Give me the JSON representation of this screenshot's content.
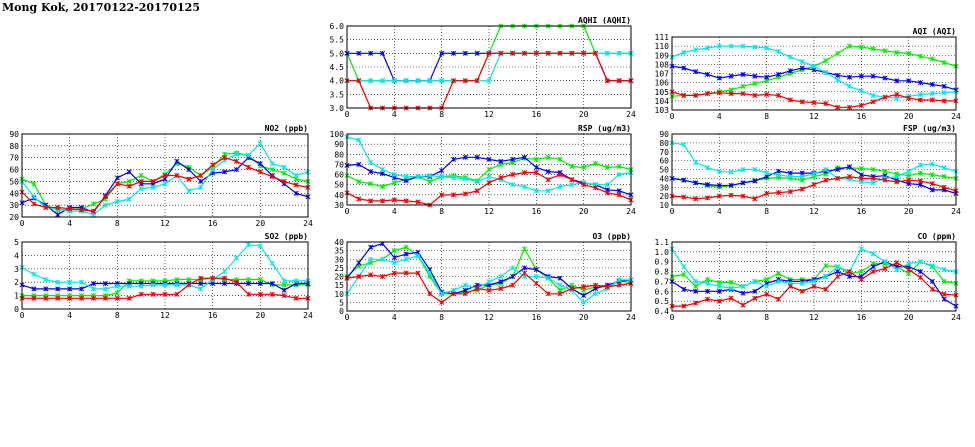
{
  "page": {
    "title": "Mong Kok, 20170122-20170125"
  },
  "colors": {
    "series_a": "#00ee00",
    "series_b": "#0000ee",
    "series_c": "#00e8e8",
    "series_d": "#ee0000"
  },
  "chart_data": [
    {
      "type": "line",
      "title": "AQHI (AQHI)",
      "xlim": [
        0,
        24
      ],
      "ylim": [
        3.0,
        6.0
      ],
      "xticks": [
        0,
        4,
        8,
        12,
        16,
        20,
        24
      ],
      "yticks": [
        3.0,
        3.5,
        4.0,
        4.5,
        5.0,
        5.5,
        6.0
      ],
      "grid": true,
      "series": [
        {
          "color": "#00ee00",
          "values": [
            5,
            4,
            4,
            4,
            4,
            4,
            4,
            4,
            4,
            4,
            4,
            4,
            5,
            6,
            6,
            6,
            6,
            6,
            6,
            6,
            6,
            5,
            5,
            5,
            5
          ]
        },
        {
          "color": "#0000ee",
          "values": [
            5,
            5,
            5,
            5,
            4,
            4,
            4,
            4,
            5,
            5,
            5,
            5,
            5,
            5,
            5,
            5,
            5,
            5,
            5,
            5,
            5,
            5,
            4,
            4,
            4
          ]
        },
        {
          "color": "#00e8e8",
          "values": [
            4,
            4,
            4,
            4,
            4,
            4,
            4,
            4,
            4,
            4,
            4,
            4,
            4,
            5,
            5,
            5,
            5,
            5,
            5,
            5,
            5,
            5,
            5,
            5,
            5
          ]
        },
        {
          "color": "#ee0000",
          "values": [
            4,
            4,
            3,
            3,
            3,
            3,
            3,
            3,
            3,
            4,
            4,
            4,
            5,
            5,
            5,
            5,
            5,
            5,
            5,
            5,
            5,
            5,
            4,
            4,
            4
          ]
        }
      ]
    },
    {
      "type": "line",
      "title": "AQI (AQI)",
      "xlim": [
        0,
        24
      ],
      "ylim": [
        103,
        111
      ],
      "xticks": [
        0,
        4,
        8,
        12,
        16,
        20,
        24
      ],
      "yticks": [
        103,
        104,
        105,
        106,
        107,
        108,
        109,
        110,
        111
      ],
      "grid": true,
      "series": [
        {
          "color": "#00ee00",
          "values": [
            104.5,
            104.6,
            104.6,
            104.8,
            105.0,
            105.2,
            105.6,
            105.9,
            106.2,
            106.6,
            107.0,
            107.4,
            107.8,
            108.4,
            109.2,
            110.0,
            109.9,
            109.7,
            109.5,
            109.3,
            109.2,
            108.9,
            108.6,
            108.2,
            107.8
          ]
        },
        {
          "color": "#0000ee",
          "values": [
            107.8,
            107.6,
            107.2,
            106.9,
            106.5,
            106.7,
            106.9,
            106.7,
            106.6,
            106.9,
            107.3,
            107.6,
            107.4,
            107.1,
            106.8,
            106.6,
            106.7,
            106.7,
            106.5,
            106.2,
            106.2,
            106.0,
            105.8,
            105.6,
            105.2
          ]
        },
        {
          "color": "#00e8e8",
          "values": [
            108.8,
            109.3,
            109.6,
            109.8,
            110.0,
            110.0,
            110.0,
            109.9,
            109.8,
            109.4,
            108.8,
            108.3,
            107.8,
            107.1,
            106.3,
            105.6,
            105.1,
            104.6,
            104.4,
            104.3,
            104.5,
            104.7,
            104.8,
            104.9,
            105.0
          ]
        },
        {
          "color": "#ee0000",
          "values": [
            105.0,
            104.6,
            104.6,
            104.8,
            104.9,
            104.8,
            104.8,
            104.6,
            104.7,
            104.6,
            104.1,
            103.9,
            103.8,
            103.7,
            103.3,
            103.3,
            103.5,
            103.9,
            104.4,
            104.7,
            104.3,
            104.1,
            104.1,
            104.0,
            104.0
          ]
        }
      ]
    },
    {
      "type": "line",
      "title": "NO2 (ppb)",
      "xlim": [
        0,
        24
      ],
      "ylim": [
        20,
        90
      ],
      "xticks": [
        0,
        4,
        8,
        12,
        16,
        20,
        24
      ],
      "yticks": [
        20,
        30,
        40,
        50,
        60,
        70,
        80,
        90
      ],
      "grid": true,
      "series": [
        {
          "color": "#00ee00",
          "values": [
            52,
            48,
            30,
            26,
            26,
            27,
            31,
            35,
            48,
            50,
            55,
            50,
            56,
            65,
            62,
            55,
            62,
            73,
            74,
            72,
            63,
            60,
            57,
            52,
            50
          ]
        },
        {
          "color": "#0000ee",
          "values": [
            32,
            36,
            30,
            22,
            28,
            28,
            24,
            38,
            53,
            58,
            48,
            48,
            52,
            67,
            60,
            50,
            57,
            58,
            60,
            70,
            65,
            55,
            48,
            40,
            37
          ]
        },
        {
          "color": "#00e8e8",
          "values": [
            50,
            37,
            28,
            27,
            25,
            25,
            22,
            30,
            33,
            35,
            44,
            45,
            48,
            55,
            42,
            45,
            60,
            68,
            73,
            72,
            82,
            65,
            62,
            55,
            58
          ]
        },
        {
          "color": "#ee0000",
          "values": [
            41,
            31,
            28,
            28,
            27,
            26,
            25,
            37,
            48,
            46,
            50,
            50,
            55,
            55,
            52,
            55,
            64,
            70,
            67,
            62,
            58,
            54,
            50,
            47,
            45
          ]
        }
      ]
    },
    {
      "type": "line",
      "title": "RSP (ug/m3)",
      "xlim": [
        0,
        24
      ],
      "ylim": [
        30,
        100
      ],
      "xticks": [
        0,
        4,
        8,
        12,
        16,
        20,
        24
      ],
      "yticks": [
        30,
        40,
        50,
        60,
        70,
        80,
        90,
        100
      ],
      "grid": true,
      "series": [
        {
          "color": "#00ee00",
          "values": [
            59,
            53,
            51,
            48,
            52,
            55,
            58,
            53,
            58,
            59,
            57,
            54,
            65,
            70,
            72,
            76,
            75,
            77,
            75,
            68,
            67,
            71,
            67,
            68,
            65
          ]
        },
        {
          "color": "#0000ee",
          "values": [
            69,
            70,
            63,
            61,
            57,
            54,
            58,
            58,
            64,
            75,
            77,
            77,
            75,
            73,
            75,
            77,
            67,
            63,
            62,
            55,
            52,
            50,
            45,
            44,
            40
          ]
        },
        {
          "color": "#00e8e8",
          "values": [
            97,
            94,
            72,
            65,
            60,
            58,
            58,
            59,
            58,
            57,
            56,
            53,
            58,
            55,
            50,
            48,
            44,
            44,
            48,
            50,
            52,
            50,
            50,
            60,
            62
          ]
        },
        {
          "color": "#ee0000",
          "values": [
            42,
            36,
            34,
            34,
            35,
            34,
            33,
            30,
            40,
            40,
            41,
            44,
            52,
            57,
            60,
            62,
            62,
            55,
            60,
            55,
            50,
            47,
            42,
            40,
            35
          ]
        }
      ]
    },
    {
      "type": "line",
      "title": "FSP (ug/m3)",
      "xlim": [
        0,
        24
      ],
      "ylim": [
        10,
        90
      ],
      "xticks": [
        0,
        4,
        8,
        12,
        16,
        20,
        24
      ],
      "yticks": [
        10,
        20,
        30,
        40,
        50,
        60,
        70,
        80,
        90
      ],
      "grid": true,
      "series": [
        {
          "color": "#00ee00",
          "values": [
            40,
            38,
            35,
            32,
            30,
            32,
            35,
            38,
            40,
            41,
            40,
            38,
            42,
            45,
            52,
            52,
            51,
            50,
            48,
            45,
            43,
            46,
            44,
            42,
            40
          ]
        },
        {
          "color": "#0000ee",
          "values": [
            40,
            38,
            35,
            33,
            32,
            32,
            35,
            37,
            42,
            48,
            46,
            46,
            46,
            48,
            50,
            53,
            44,
            42,
            43,
            38,
            34,
            33,
            27,
            27,
            23
          ]
        },
        {
          "color": "#00e8e8",
          "values": [
            80,
            78,
            58,
            52,
            48,
            47,
            50,
            50,
            46,
            44,
            42,
            42,
            45,
            50,
            40,
            39,
            36,
            35,
            40,
            42,
            48,
            55,
            56,
            52,
            48
          ]
        },
        {
          "color": "#ee0000",
          "values": [
            20,
            19,
            17,
            18,
            20,
            21,
            20,
            17,
            23,
            24,
            25,
            28,
            33,
            38,
            40,
            42,
            40,
            40,
            38,
            36,
            38,
            37,
            34,
            30,
            26
          ]
        }
      ]
    },
    {
      "type": "line",
      "title": "SO2 (ppb)",
      "xlim": [
        0,
        24
      ],
      "ylim": [
        0,
        5
      ],
      "xticks": [
        0,
        4,
        8,
        12,
        16,
        20,
        24
      ],
      "yticks": [
        0,
        1,
        2,
        3,
        4,
        5
      ],
      "grid": true,
      "series": [
        {
          "color": "#00ee00",
          "values": [
            1.0,
            1.0,
            1.0,
            1.0,
            1.0,
            1.0,
            1.0,
            1.0,
            1.2,
            2.1,
            2.1,
            2.1,
            2.1,
            2.2,
            2.2,
            2.2,
            2.3,
            2.2,
            2.2,
            2.2,
            2.2,
            1.8,
            1.8,
            1.8,
            1.8
          ]
        },
        {
          "color": "#0000ee",
          "values": [
            1.8,
            1.5,
            1.5,
            1.5,
            1.5,
            1.5,
            1.9,
            1.9,
            1.9,
            1.9,
            1.9,
            1.9,
            1.9,
            1.9,
            1.9,
            1.9,
            1.9,
            1.9,
            1.9,
            1.9,
            1.9,
            1.9,
            1.4,
            1.9,
            1.9
          ]
        },
        {
          "color": "#00e8e8",
          "values": [
            3.1,
            2.6,
            2.2,
            2.0,
            2.0,
            2.0,
            1.5,
            1.5,
            1.7,
            1.7,
            1.7,
            1.8,
            1.8,
            1.8,
            1.8,
            1.5,
            2.2,
            2.8,
            3.8,
            4.8,
            4.7,
            3.4,
            2.1,
            2.1,
            2.1
          ]
        },
        {
          "color": "#ee0000",
          "values": [
            0.8,
            0.8,
            0.8,
            0.8,
            0.8,
            0.8,
            0.8,
            0.8,
            0.8,
            0.8,
            1.1,
            1.1,
            1.1,
            1.1,
            1.8,
            2.3,
            2.3,
            2.3,
            2.0,
            1.1,
            1.1,
            1.1,
            1.0,
            0.8,
            0.8
          ]
        }
      ]
    },
    {
      "type": "line",
      "title": "O3 (ppb)",
      "xlim": [
        0,
        24
      ],
      "ylim": [
        0,
        40
      ],
      "xticks": [
        0,
        4,
        8,
        12,
        16,
        20,
        24
      ],
      "yticks": [
        0,
        5,
        10,
        15,
        20,
        25,
        30,
        35,
        40
      ],
      "grid": true,
      "series": [
        {
          "color": "#00ee00",
          "values": [
            20,
            26,
            28,
            30,
            35,
            37,
            32,
            20,
            10,
            10,
            11,
            12,
            15,
            16,
            20,
            36,
            24,
            19,
            12,
            15,
            12,
            14,
            14,
            18,
            16
          ]
        },
        {
          "color": "#0000ee",
          "values": [
            19,
            28,
            37,
            39,
            31,
            33,
            34,
            24,
            11,
            10,
            12,
            15,
            15,
            17,
            20,
            25,
            24,
            20,
            19,
            13,
            9,
            13,
            15,
            17,
            18
          ]
        },
        {
          "color": "#00e8e8",
          "values": [
            10,
            20,
            30,
            30,
            28,
            30,
            32,
            22,
            10,
            12,
            15,
            13,
            17,
            20,
            25,
            20,
            20,
            19,
            15,
            12,
            5,
            10,
            13,
            18,
            18
          ]
        },
        {
          "color": "#ee0000",
          "values": [
            19,
            20,
            21,
            20,
            22,
            22,
            22,
            10,
            5,
            10,
            10,
            13,
            12,
            13,
            15,
            22,
            16,
            10,
            10,
            13,
            14,
            15,
            14,
            15,
            16
          ]
        }
      ]
    },
    {
      "type": "line",
      "title": "CO (ppm)",
      "xlim": [
        0,
        24
      ],
      "ylim": [
        0.4,
        1.1
      ],
      "xticks": [
        0,
        4,
        8,
        12,
        16,
        20,
        24
      ],
      "yticks": [
        0.4,
        0.5,
        0.6,
        0.7,
        0.8,
        0.9,
        1.0,
        1.1
      ],
      "grid": true,
      "series": [
        {
          "color": "#00ee00",
          "values": [
            0.75,
            0.77,
            0.65,
            0.72,
            0.69,
            0.69,
            0.65,
            0.7,
            0.72,
            0.78,
            0.72,
            0.72,
            0.72,
            0.86,
            0.85,
            0.78,
            0.8,
            0.88,
            0.88,
            0.85,
            0.78,
            0.9,
            0.85,
            0.7,
            0.68
          ]
        },
        {
          "color": "#0000ee",
          "values": [
            0.7,
            0.62,
            0.6,
            0.6,
            0.6,
            0.62,
            0.58,
            0.6,
            0.68,
            0.72,
            0.7,
            0.7,
            0.72,
            0.75,
            0.8,
            0.75,
            0.75,
            0.85,
            0.9,
            0.85,
            0.85,
            0.8,
            0.7,
            0.52,
            0.45
          ]
        },
        {
          "color": "#00e8e8",
          "values": [
            1.03,
            0.85,
            0.7,
            0.68,
            0.65,
            0.63,
            0.65,
            0.7,
            0.65,
            0.7,
            0.68,
            0.68,
            0.7,
            0.75,
            0.85,
            0.8,
            1.03,
            0.98,
            0.9,
            0.82,
            0.88,
            0.9,
            0.86,
            0.82,
            0.8
          ]
        },
        {
          "color": "#ee0000",
          "values": [
            0.45,
            0.45,
            0.48,
            0.52,
            0.5,
            0.53,
            0.46,
            0.53,
            0.57,
            0.52,
            0.65,
            0.6,
            0.65,
            0.62,
            0.75,
            0.8,
            0.72,
            0.8,
            0.83,
            0.89,
            0.82,
            0.74,
            0.62,
            0.57,
            0.56
          ]
        }
      ]
    }
  ]
}
